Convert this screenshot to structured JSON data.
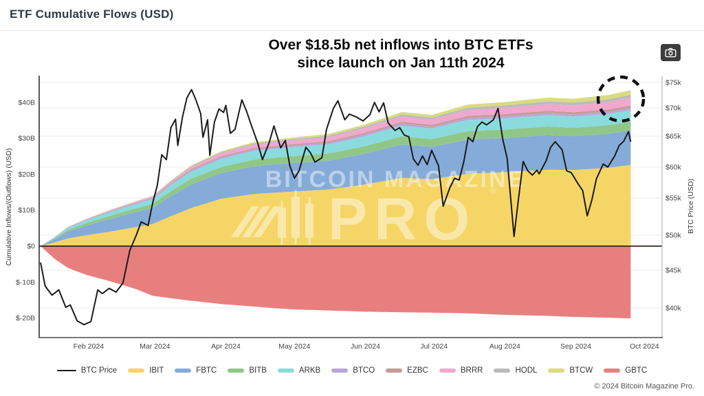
{
  "page": {
    "title": "ETF Cumulative Flows (USD)",
    "footer": "© 2024 Bitcoin Magazine Pro."
  },
  "annotation": {
    "line1": "Over $18.5b net inflows into BTC ETFs",
    "line2": "since launch on Jan 11th 2024"
  },
  "watermark": {
    "line1": "BITCOIN MAGAZINE",
    "line2": "PRO",
    "reg": "®"
  },
  "chart_data": {
    "type": "area",
    "title": "ETF Cumulative Flows (USD)",
    "x_axis": {
      "labels": [
        "Feb 2024",
        "Mar 2024",
        "Apr 2024",
        "May 2024",
        "Jun 2024",
        "Jul 2024",
        "Aug 2024",
        "Sep 2024",
        "Oct 2024"
      ],
      "label_days": [
        21,
        50,
        81,
        111,
        142,
        172,
        203,
        234,
        264
      ],
      "start_date": "Jan 11 2024"
    },
    "y_left": {
      "title": "Cumulative Inflows/(Outflows) (USD)",
      "tick_labels": [
        "$40B",
        "$30B",
        "$20B",
        "$10B",
        "$0",
        "$-10B",
        "$-20B"
      ],
      "tick_values_b": [
        40,
        30,
        20,
        10,
        0,
        -10,
        -20
      ]
    },
    "y_right": {
      "title": "BTC Price (USD)",
      "tick_labels": [
        "$75k",
        "$70k",
        "$65k",
        "$60k",
        "$55k",
        "$50k",
        "$45k",
        "$40k"
      ],
      "tick_values_k": [
        75,
        70,
        65,
        60,
        55,
        50,
        45,
        40
      ]
    },
    "days": [
      0,
      6,
      12,
      20,
      30,
      42,
      49,
      57,
      66,
      79,
      93,
      110,
      126,
      141,
      158,
      171,
      187,
      202,
      222,
      233,
      248,
      258
    ],
    "stacked_series": [
      {
        "name": "IBIT",
        "color": "#F5D565",
        "values": [
          0,
          1.0,
          2.16,
          3.04,
          4.0,
          5.34,
          6.15,
          8.33,
          10.64,
          13.2,
          14.49,
          15.19,
          15.76,
          17.08,
          18.97,
          18.62,
          20.16,
          20.54,
          21.29,
          21.18,
          21.77,
          22.57
        ]
      },
      {
        "name": "FBTC",
        "color": "#85ABD8",
        "values": [
          0,
          0.88,
          1.89,
          2.66,
          3.5,
          4.16,
          4.47,
          5.6,
          6.55,
          7.13,
          7.69,
          7.91,
          8.03,
          8.54,
          9.29,
          8.96,
          9.5,
          9.49,
          9.58,
          9.39,
          9.45,
          9.59
        ]
      },
      {
        "name": "BITB",
        "color": "#90C788",
        "values": [
          0,
          0.23,
          0.49,
          0.68,
          0.9,
          1.06,
          1.12,
          1.39,
          1.62,
          1.72,
          1.85,
          1.92,
          1.96,
          2.09,
          2.28,
          2.21,
          2.35,
          2.36,
          2.4,
          2.36,
          2.39,
          2.43
        ]
      },
      {
        "name": "ARKB",
        "color": "#8ADBDE",
        "values": [
          0,
          0.25,
          0.54,
          0.76,
          1.0,
          1.21,
          1.32,
          1.68,
          2.0,
          2.24,
          2.43,
          2.51,
          2.56,
          2.74,
          3.0,
          2.9,
          3.09,
          3.11,
          3.16,
          3.11,
          3.15,
          3.21
        ]
      },
      {
        "name": "BTCO",
        "color": "#B9A6D9",
        "values": [
          0,
          0.05,
          0.11,
          0.15,
          0.2,
          0.24,
          0.25,
          0.31,
          0.36,
          0.4,
          0.43,
          0.45,
          0.46,
          0.5,
          0.54,
          0.53,
          0.57,
          0.57,
          0.59,
          0.58,
          0.59,
          0.61
        ]
      },
      {
        "name": "EZBC",
        "color": "#C49C94",
        "values": [
          0,
          0.03,
          0.05,
          0.08,
          0.1,
          0.13,
          0.15,
          0.2,
          0.26,
          0.32,
          0.36,
          0.38,
          0.41,
          0.45,
          0.51,
          0.51,
          0.56,
          0.59,
          0.62,
          0.63,
          0.66,
          0.69
        ]
      },
      {
        "name": "BRRR",
        "color": "#F0A8CE",
        "values": [
          0,
          0.04,
          0.08,
          0.11,
          0.15,
          0.24,
          0.29,
          0.42,
          0.59,
          0.79,
          0.91,
          1.01,
          1.1,
          1.24,
          1.44,
          1.46,
          1.64,
          1.74,
          1.88,
          1.91,
          2.03,
          2.17
        ]
      },
      {
        "name": "HODL",
        "color": "#BBBBBB",
        "values": [
          0,
          0.03,
          0.05,
          0.08,
          0.1,
          0.13,
          0.16,
          0.21,
          0.27,
          0.34,
          0.39,
          0.42,
          0.45,
          0.51,
          0.58,
          0.58,
          0.65,
          0.68,
          0.73,
          0.74,
          0.78,
          0.82
        ]
      },
      {
        "name": "BTCW",
        "color": "#D9DB80",
        "values": [
          0,
          0.01,
          0.03,
          0.04,
          0.05,
          0.08,
          0.1,
          0.14,
          0.2,
          0.26,
          0.33,
          0.4,
          0.47,
          0.56,
          0.69,
          0.73,
          0.86,
          0.94,
          1.05,
          1.09,
          1.19,
          1.3
        ]
      }
    ],
    "gbtc": {
      "name": "GBTC",
      "color": "#E87F7F",
      "values": [
        0,
        -3.5,
        -6.1,
        -8.0,
        -9.7,
        -12.0,
        -13.8,
        -14.5,
        -15.2,
        -16.1,
        -16.8,
        -17.6,
        -17.9,
        -18.2,
        -18.4,
        -18.5,
        -18.7,
        -19.1,
        -19.4,
        -19.7,
        -19.9,
        -20.1
      ]
    },
    "btc_price": {
      "name": "BTC Price",
      "color": "#1a1a1a",
      "days": [
        0,
        2,
        5,
        8,
        11,
        13,
        16,
        19,
        22,
        25,
        27,
        30,
        33,
        36,
        39,
        42,
        44,
        47,
        49,
        51,
        53,
        55,
        57,
        59,
        60,
        62,
        64,
        66,
        68,
        70,
        71,
        73,
        74,
        76,
        78,
        80,
        81,
        83,
        85,
        88,
        90,
        92,
        95,
        97,
        100,
        102,
        105,
        107,
        109,
        111,
        113,
        116,
        118,
        120,
        123,
        125,
        128,
        130,
        133,
        135,
        138,
        141,
        144,
        146,
        148,
        150,
        152,
        155,
        157,
        159,
        161,
        163,
        165,
        167,
        169,
        171,
        174,
        176,
        179,
        181,
        183,
        185,
        187,
        189,
        191,
        193,
        195,
        198,
        200,
        202,
        204,
        207,
        209,
        211,
        213,
        215,
        217,
        218,
        221,
        223,
        225,
        228,
        230,
        232,
        235,
        237,
        239,
        241,
        243,
        246,
        248,
        251,
        253,
        255,
        257,
        258
      ],
      "values_usd_k": [
        46.1,
        42.9,
        41.7,
        42.4,
        40.1,
        40.4,
        38.3,
        37.8,
        38.2,
        42.4,
        41.9,
        42.6,
        42.1,
        43.3,
        47.8,
        50.1,
        51.8,
        51.3,
        54.3,
        57.0,
        62.0,
        61.2,
        66.5,
        68.0,
        63.5,
        68.3,
        72.0,
        73.6,
        71.5,
        69.0,
        64.8,
        67.9,
        61.9,
        67.5,
        69.8,
        69.2,
        70.5,
        65.5,
        66.2,
        71.6,
        69.5,
        67.1,
        63.8,
        61.2,
        64.0,
        66.8,
        63.1,
        64.3,
        60.2,
        58.2,
        59.4,
        63.2,
        62.3,
        60.8,
        61.5,
        66.2,
        69.9,
        71.4,
        67.9,
        68.9,
        68.4,
        67.7,
        68.8,
        71.1,
        69.3,
        71.0,
        67.3,
        66.0,
        66.5,
        65.2,
        64.9,
        61.3,
        60.3,
        61.8,
        60.4,
        62.7,
        60.2,
        53.9,
        56.7,
        58.2,
        57.9,
        60.8,
        64.8,
        64.1,
        66.7,
        67.5,
        67.0,
        67.9,
        69.9,
        64.6,
        61.4,
        49.8,
        55.0,
        60.9,
        59.4,
        58.7,
        59.5,
        58.9,
        61.0,
        63.2,
        64.1,
        62.8,
        59.4,
        59.1,
        57.3,
        56.2,
        52.6,
        54.7,
        58.1,
        60.5,
        60.0,
        61.8,
        63.5,
        64.2,
        65.8,
        64.1
      ]
    },
    "legend": [
      {
        "label": "BTC Price",
        "color": "#1a1a1a",
        "type": "line"
      },
      {
        "label": "IBIT",
        "color": "#F5D565",
        "type": "area"
      },
      {
        "label": "FBTC",
        "color": "#85ABD8",
        "type": "area"
      },
      {
        "label": "BITB",
        "color": "#90C788",
        "type": "area"
      },
      {
        "label": "ARKB",
        "color": "#8ADBDE",
        "type": "area"
      },
      {
        "label": "BTCO",
        "color": "#B9A6D9",
        "type": "area"
      },
      {
        "label": "EZBC",
        "color": "#C49C94",
        "type": "area"
      },
      {
        "label": "BRRR",
        "color": "#F0A8CE",
        "type": "area"
      },
      {
        "label": "HODL",
        "color": "#BBBBBB",
        "type": "area"
      },
      {
        "label": "BTCW",
        "color": "#D9DB80",
        "type": "area"
      },
      {
        "label": "GBTC",
        "color": "#E87F7F",
        "type": "area"
      }
    ],
    "highlight_circle": {
      "present": true
    }
  }
}
